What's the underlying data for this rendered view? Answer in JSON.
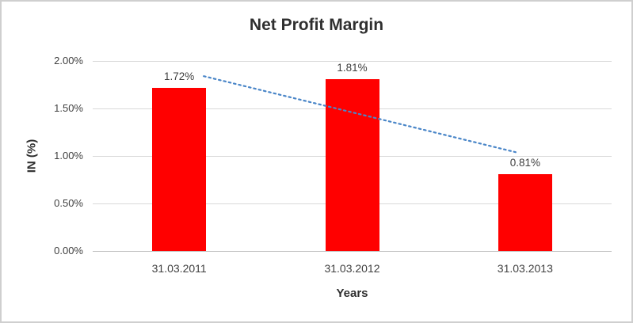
{
  "chart_data": {
    "type": "bar",
    "title": "Net Profit Margin",
    "xlabel": "Years",
    "ylabel": "IN (%)",
    "categories": [
      "31.03.2011",
      "31.03.2012",
      "31.03.2013"
    ],
    "values": [
      1.72,
      1.81,
      0.81
    ],
    "data_labels": [
      "1.72%",
      "1.81%",
      "0.81%"
    ],
    "yticks": [
      {
        "value": 0.0,
        "label": "0.00%"
      },
      {
        "value": 0.5,
        "label": "0.50%"
      },
      {
        "value": 1.0,
        "label": "1.00%"
      },
      {
        "value": 1.5,
        "label": "1.50%"
      },
      {
        "value": 2.0,
        "label": "2.00%"
      }
    ],
    "ylim": [
      0,
      2.0
    ],
    "grid": true,
    "legend": "none",
    "bar_color": "#ff0000",
    "gridline_color": "#d9d9d9",
    "axis_color": "#bfbfbf",
    "trendline": {
      "style": "dotted",
      "color": "#4a86c8",
      "x1_frac": 0.214,
      "y1_value": 1.84,
      "x2_frac": 0.815,
      "y2_value": 1.04
    }
  }
}
